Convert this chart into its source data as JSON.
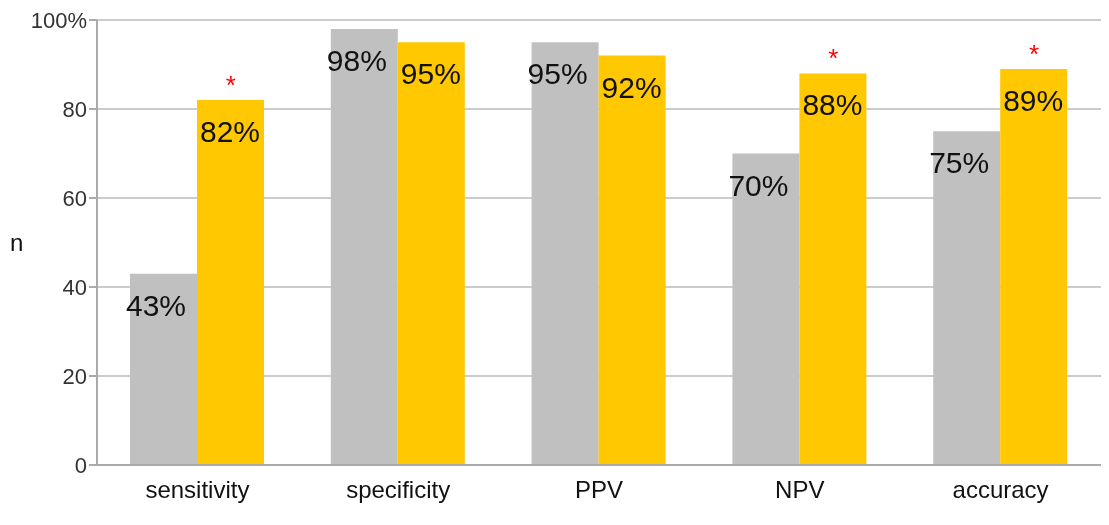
{
  "chart_data": {
    "type": "bar",
    "ylabel": "n",
    "categories": [
      "sensitivity",
      "specificity",
      "PPV",
      "NPV",
      "accuracy"
    ],
    "series": [
      {
        "color": "#c0c0c0",
        "values": [
          43,
          98,
          95,
          70,
          75
        ],
        "value_labels": [
          "43%",
          "98%",
          "95%",
          "70%",
          "75%"
        ]
      },
      {
        "color": "#ffc800",
        "values": [
          82,
          95,
          92,
          88,
          89
        ],
        "value_labels": [
          "82%",
          "95%",
          "92%",
          "88%",
          "89%"
        ]
      }
    ],
    "ylim": [
      0,
      100
    ],
    "yticks": [
      0,
      20,
      40,
      60,
      80,
      {
        "value": 100,
        "label": "100%"
      }
    ],
    "grid": "y",
    "legend": false,
    "annotations": [
      {
        "text": "*",
        "x": "sensitivity",
        "y": 82
      },
      {
        "text": "*",
        "x": "NPV",
        "y": 88
      },
      {
        "text": "*",
        "x": "accuracy",
        "y": 89
      }
    ]
  }
}
